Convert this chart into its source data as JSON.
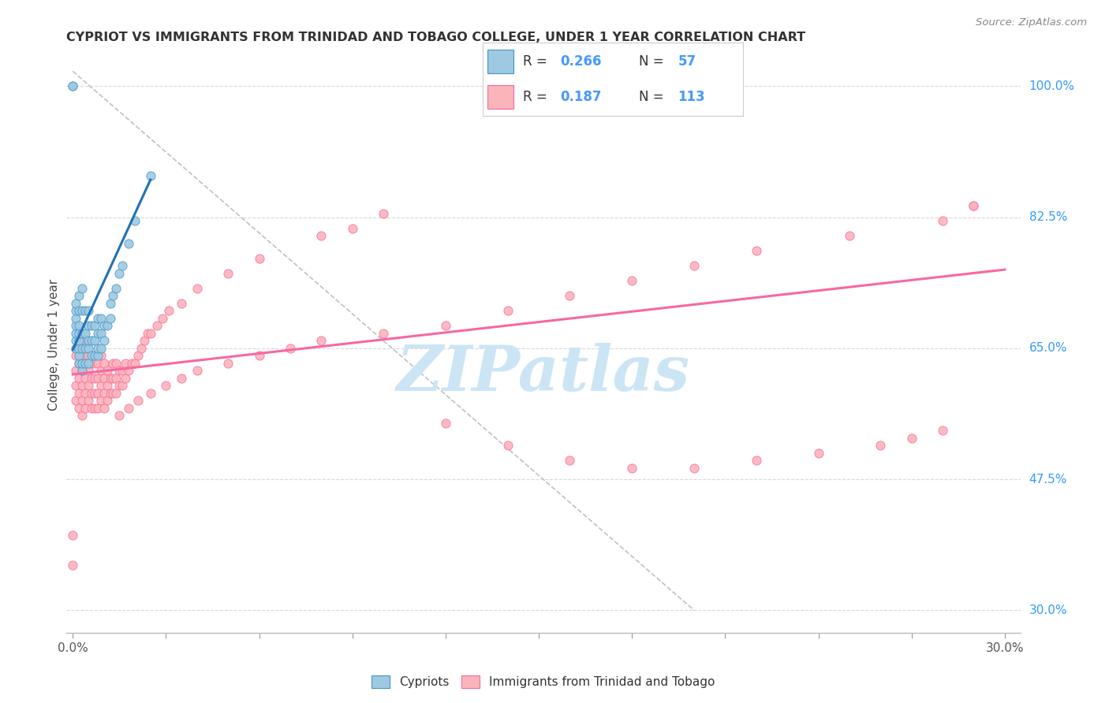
{
  "title": "CYPRIOT VS IMMIGRANTS FROM TRINIDAD AND TOBAGO COLLEGE, UNDER 1 YEAR CORRELATION CHART",
  "source": "Source: ZipAtlas.com",
  "ylabel": "College, Under 1 year",
  "x_tick_values": [
    0.0,
    0.03,
    0.06,
    0.09,
    0.12,
    0.15,
    0.18,
    0.21,
    0.24,
    0.27,
    0.3
  ],
  "x_tick_labels_show": [
    "0.0%",
    "",
    "",
    "",
    "",
    "",
    "",
    "",
    "",
    "",
    "30.0%"
  ],
  "y_tick_right_values": [
    1.0,
    0.825,
    0.65,
    0.475,
    0.3
  ],
  "y_tick_right_labels": [
    "100.0%",
    "82.5%",
    "65.0%",
    "47.5%",
    "30.0%"
  ],
  "xlim": [
    -0.002,
    0.305
  ],
  "ylim": [
    0.27,
    1.04
  ],
  "color_blue": "#9ecae1",
  "color_pink": "#fbb4b9",
  "color_blue_edge": "#4292c6",
  "color_pink_edge": "#f768a1",
  "color_blue_line": "#2171b5",
  "color_pink_line": "#f768a1",
  "color_diag": "#c0c0c0",
  "watermark": "ZIPatlas",
  "watermark_color": "#cce5f5",
  "grid_color": "#d9d9d9",
  "legend_r_color": "#4499ff",
  "legend_n_color": "#4499ff",
  "blue_scatter_x": [
    0.0,
    0.0,
    0.001,
    0.001,
    0.001,
    0.001,
    0.001,
    0.001,
    0.001,
    0.002,
    0.002,
    0.002,
    0.002,
    0.002,
    0.002,
    0.002,
    0.002,
    0.003,
    0.003,
    0.003,
    0.003,
    0.003,
    0.003,
    0.004,
    0.004,
    0.004,
    0.004,
    0.005,
    0.005,
    0.005,
    0.005,
    0.005,
    0.006,
    0.006,
    0.006,
    0.007,
    0.007,
    0.007,
    0.008,
    0.008,
    0.008,
    0.008,
    0.009,
    0.009,
    0.009,
    0.01,
    0.01,
    0.011,
    0.012,
    0.012,
    0.013,
    0.014,
    0.015,
    0.016,
    0.018,
    0.02,
    0.025
  ],
  "blue_scatter_y": [
    1.0,
    1.0,
    0.65,
    0.66,
    0.67,
    0.68,
    0.69,
    0.7,
    0.71,
    0.63,
    0.64,
    0.65,
    0.66,
    0.67,
    0.68,
    0.7,
    0.72,
    0.62,
    0.63,
    0.65,
    0.67,
    0.7,
    0.73,
    0.63,
    0.65,
    0.67,
    0.7,
    0.63,
    0.65,
    0.66,
    0.68,
    0.7,
    0.64,
    0.66,
    0.68,
    0.64,
    0.66,
    0.68,
    0.64,
    0.65,
    0.67,
    0.69,
    0.65,
    0.67,
    0.69,
    0.66,
    0.68,
    0.68,
    0.69,
    0.71,
    0.72,
    0.73,
    0.75,
    0.76,
    0.79,
    0.82,
    0.88
  ],
  "pink_scatter_x": [
    0.0,
    0.0,
    0.001,
    0.001,
    0.001,
    0.001,
    0.002,
    0.002,
    0.002,
    0.002,
    0.002,
    0.003,
    0.003,
    0.003,
    0.003,
    0.003,
    0.003,
    0.004,
    0.004,
    0.004,
    0.004,
    0.004,
    0.005,
    0.005,
    0.005,
    0.005,
    0.006,
    0.006,
    0.006,
    0.006,
    0.007,
    0.007,
    0.007,
    0.007,
    0.008,
    0.008,
    0.008,
    0.008,
    0.009,
    0.009,
    0.009,
    0.009,
    0.01,
    0.01,
    0.01,
    0.01,
    0.011,
    0.011,
    0.011,
    0.012,
    0.012,
    0.013,
    0.013,
    0.013,
    0.014,
    0.014,
    0.014,
    0.015,
    0.015,
    0.016,
    0.016,
    0.017,
    0.017,
    0.018,
    0.019,
    0.02,
    0.021,
    0.022,
    0.023,
    0.024,
    0.025,
    0.027,
    0.029,
    0.031,
    0.035,
    0.04,
    0.05,
    0.06,
    0.08,
    0.09,
    0.1,
    0.12,
    0.14,
    0.16,
    0.18,
    0.2,
    0.22,
    0.24,
    0.26,
    0.27,
    0.28,
    0.015,
    0.018,
    0.021,
    0.025,
    0.03,
    0.035,
    0.04,
    0.05,
    0.06,
    0.07,
    0.08,
    0.1,
    0.12,
    0.14,
    0.16,
    0.18,
    0.2,
    0.22,
    0.25,
    0.28,
    0.29,
    0.29
  ],
  "pink_scatter_y": [
    0.36,
    0.4,
    0.58,
    0.6,
    0.62,
    0.64,
    0.57,
    0.59,
    0.61,
    0.63,
    0.65,
    0.56,
    0.58,
    0.6,
    0.62,
    0.64,
    0.66,
    0.57,
    0.59,
    0.61,
    0.63,
    0.65,
    0.58,
    0.6,
    0.62,
    0.64,
    0.57,
    0.59,
    0.61,
    0.63,
    0.57,
    0.59,
    0.61,
    0.63,
    0.57,
    0.59,
    0.61,
    0.63,
    0.58,
    0.6,
    0.62,
    0.64,
    0.57,
    0.59,
    0.61,
    0.63,
    0.58,
    0.6,
    0.62,
    0.59,
    0.61,
    0.59,
    0.61,
    0.63,
    0.59,
    0.61,
    0.63,
    0.6,
    0.62,
    0.6,
    0.62,
    0.61,
    0.63,
    0.62,
    0.63,
    0.63,
    0.64,
    0.65,
    0.66,
    0.67,
    0.67,
    0.68,
    0.69,
    0.7,
    0.71,
    0.73,
    0.75,
    0.77,
    0.8,
    0.81,
    0.83,
    0.55,
    0.52,
    0.5,
    0.49,
    0.49,
    0.5,
    0.51,
    0.52,
    0.53,
    0.54,
    0.56,
    0.57,
    0.58,
    0.59,
    0.6,
    0.61,
    0.62,
    0.63,
    0.64,
    0.65,
    0.66,
    0.67,
    0.68,
    0.7,
    0.72,
    0.74,
    0.76,
    0.78,
    0.8,
    0.82,
    0.84,
    0.84
  ],
  "blue_line_x": [
    0.0,
    0.025
  ],
  "blue_line_y": [
    0.648,
    0.875
  ],
  "pink_line_x": [
    0.0,
    0.3
  ],
  "pink_line_y": [
    0.615,
    0.755
  ],
  "diag_line_x": [
    0.0,
    0.2
  ],
  "diag_line_y": [
    1.02,
    0.3
  ]
}
